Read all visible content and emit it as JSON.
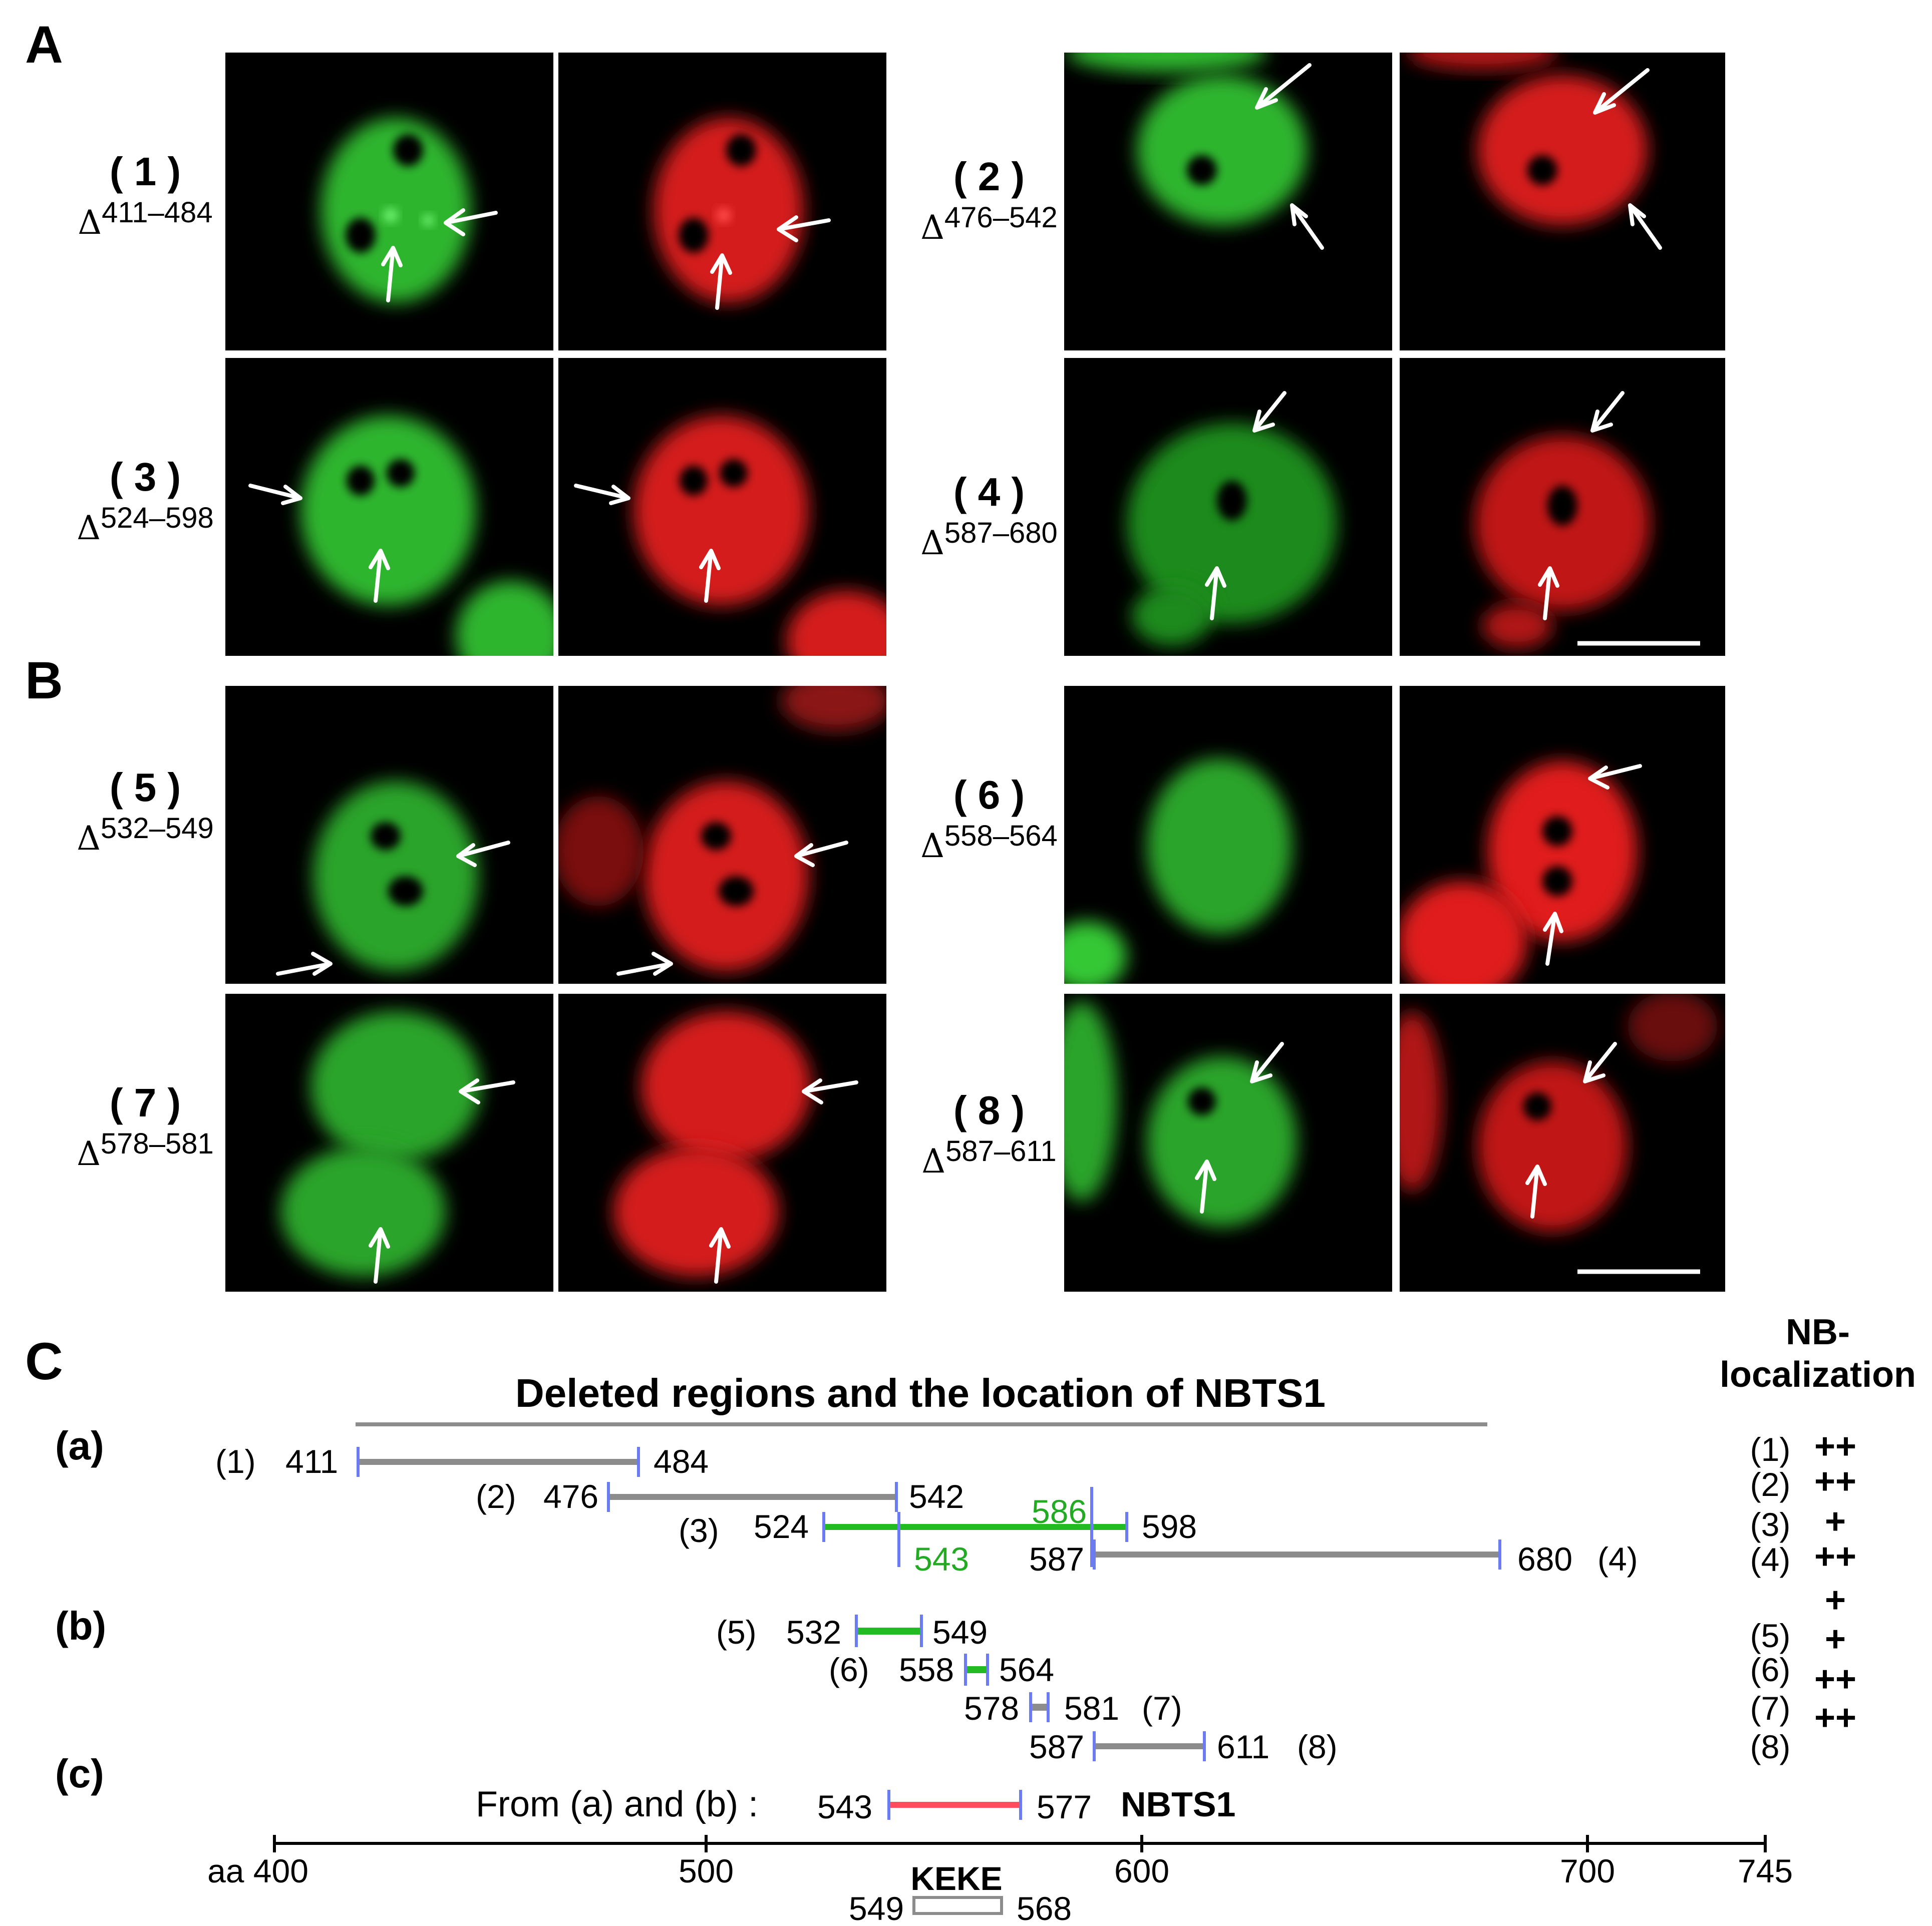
{
  "panel_letters": {
    "a": "A",
    "b": "B",
    "c": "C"
  },
  "micrographs": [
    {
      "num": "( 1 )",
      "delta": "Δ",
      "range": "411–484"
    },
    {
      "num": "( 2 )",
      "delta": "Δ",
      "range": "476–542"
    },
    {
      "num": "( 3 )",
      "delta": "Δ",
      "range": "524–598"
    },
    {
      "num": "( 4 )",
      "delta": "Δ",
      "range": "587–680"
    },
    {
      "num": "( 5 )",
      "delta": "Δ",
      "range": "532–549"
    },
    {
      "num": "( 6 )",
      "delta": "Δ",
      "range": "558–564"
    },
    {
      "num": "( 7 )",
      "delta": "Δ",
      "range": "578–581"
    },
    {
      "num": "( 8 )",
      "delta": "Δ",
      "range": "587–611"
    }
  ],
  "diagram": {
    "title": "Deleted regions and the location of NBTS1",
    "nb_header": [
      "NB-",
      "localization"
    ],
    "row_labels": {
      "a": "(a)",
      "b": "(b)",
      "c": "(c)"
    },
    "segments": [
      {
        "id": "(1)",
        "start": 411,
        "end": 484,
        "start_label": "411",
        "end_label": "484",
        "color": "#8c8c8c",
        "nb": "++"
      },
      {
        "id": "(2)",
        "start": 476,
        "end": 542,
        "start_label": "476",
        "end_label": "542",
        "color": "#8c8c8c",
        "nb": "++"
      },
      {
        "id": "(3)",
        "start": 524,
        "end": 598,
        "start_label": "524",
        "end_label": "598",
        "color": "#22bb22",
        "nb": "+"
      },
      {
        "id": "(4)",
        "start": 587,
        "end": 680,
        "start_label": "587",
        "end_label": "680",
        "color": "#8c8c8c",
        "nb": "++"
      },
      {
        "id": "(5)",
        "start": 532,
        "end": 549,
        "start_label": "532",
        "end_label": "549",
        "color": "#22bb22",
        "nb": "+"
      },
      {
        "id": "(6)",
        "start": 558,
        "end": 564,
        "start_label": "558",
        "end_label": "564",
        "color": "#22bb22",
        "nb": "+"
      },
      {
        "id": "(7)",
        "start": 578,
        "end": 581,
        "start_label": "578",
        "end_label": "581",
        "color": "#8c8c8c",
        "nb": "++"
      },
      {
        "id": "(8)",
        "start": 587,
        "end": 611,
        "start_label": "587",
        "end_label": "611",
        "color": "#8c8c8c",
        "nb": "++"
      }
    ],
    "green_marks": {
      "m586": "586",
      "m543": "543"
    },
    "nbts1": {
      "prefix": "From (a) and (b) :",
      "start": 543,
      "end": 577,
      "start_label": "543",
      "end_label": "577",
      "name": "NBTS1",
      "color": "#ff4d5e"
    },
    "axis": {
      "start": 400,
      "end": 745,
      "ticks": [
        400,
        500,
        600,
        700,
        745
      ],
      "tick_labels": [
        "aa 400",
        "500",
        "600",
        "700",
        "745"
      ]
    },
    "keke": {
      "name": "KEKE",
      "start": 549,
      "end": 568,
      "start_label": "549",
      "end_label": "568"
    }
  },
  "colors": {
    "green_channel": "#34c834",
    "red_channel": "#e01a1a",
    "tick": "#6b7bf0",
    "grey_bar": "#8c8c8c"
  }
}
